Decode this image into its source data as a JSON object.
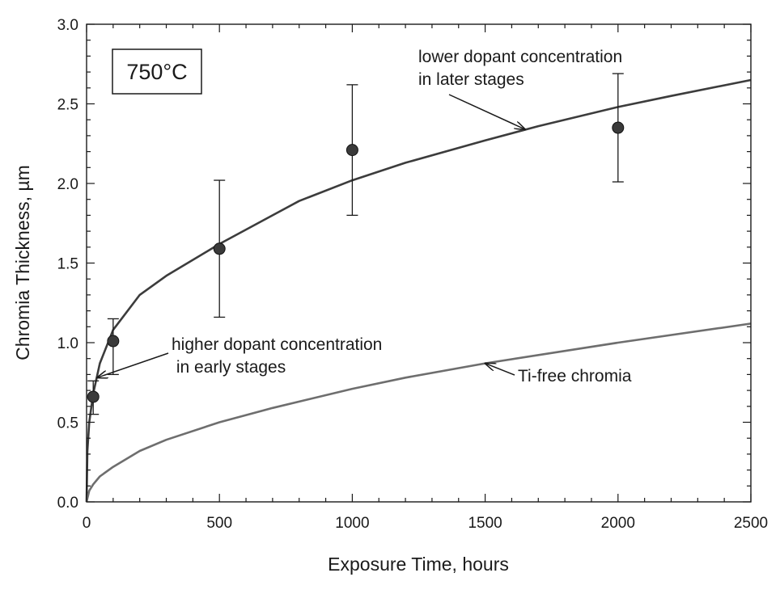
{
  "chart_data": {
    "type": "scatter",
    "xlabel": "Exposure Time, hours",
    "ylabel": "Chromia Thickness, µm",
    "xlim": [
      0,
      2500
    ],
    "ylim": [
      0,
      3.0
    ],
    "xticks": [
      0,
      500,
      1000,
      1500,
      2000,
      2500
    ],
    "yticks": [
      0.0,
      0.5,
      1.0,
      1.5,
      2.0,
      2.5,
      3.0
    ],
    "xtick_labels": [
      "0",
      "500",
      "1000",
      "1500",
      "2000",
      "2500"
    ],
    "ytick_labels": [
      "0.0",
      "0.5",
      "1.0",
      "1.5",
      "2.0",
      "2.5",
      "3.0"
    ],
    "grid": false,
    "temperature_label": {
      "value": "750",
      "unit": "°C"
    },
    "measured": {
      "color": "#3a3a3a",
      "points": [
        {
          "x": 25,
          "y": 0.66,
          "err_low": 0.55,
          "err_high": 0.76
        },
        {
          "x": 100,
          "y": 1.01,
          "err_low": 0.8,
          "err_high": 1.15
        },
        {
          "x": 500,
          "y": 1.59,
          "err_low": 1.16,
          "err_high": 2.02
        },
        {
          "x": 1000,
          "y": 2.21,
          "err_low": 1.8,
          "err_high": 2.62
        },
        {
          "x": 2000,
          "y": 2.35,
          "err_low": 2.01,
          "err_high": 2.69
        }
      ]
    },
    "series": [
      {
        "color": "#3c3c3c",
        "x": [
          0,
          3,
          10,
          25,
          50,
          100,
          200,
          300,
          500,
          700,
          800,
          1000,
          1200,
          1500,
          1700,
          2000,
          2200,
          2500
        ],
        "y": [
          0.0,
          0.32,
          0.5,
          0.68,
          0.87,
          1.08,
          1.3,
          1.42,
          1.62,
          1.8,
          1.89,
          2.02,
          2.13,
          2.27,
          2.36,
          2.48,
          2.55,
          2.65
        ]
      },
      {
        "color": "#6e6e6e",
        "x": [
          0,
          10,
          25,
          50,
          100,
          200,
          300,
          500,
          700,
          1000,
          1200,
          1500,
          2000,
          2500
        ],
        "y": [
          0.0,
          0.07,
          0.11,
          0.16,
          0.22,
          0.32,
          0.39,
          0.5,
          0.59,
          0.71,
          0.78,
          0.87,
          1.0,
          1.12
        ]
      }
    ],
    "annotations": [
      {
        "lines": [
          "lower dopant concentration",
          "in later stages"
        ],
        "arrow_to": {
          "x": 1650,
          "y": 2.34
        }
      },
      {
        "lines": [
          "higher dopant concentration",
          " in early stages"
        ],
        "arrow_to": {
          "x": 40,
          "y": 0.78
        }
      },
      {
        "lines": [
          "Ti-free chromia"
        ],
        "arrow_to": {
          "x": 1500,
          "y": 0.87
        }
      }
    ]
  }
}
